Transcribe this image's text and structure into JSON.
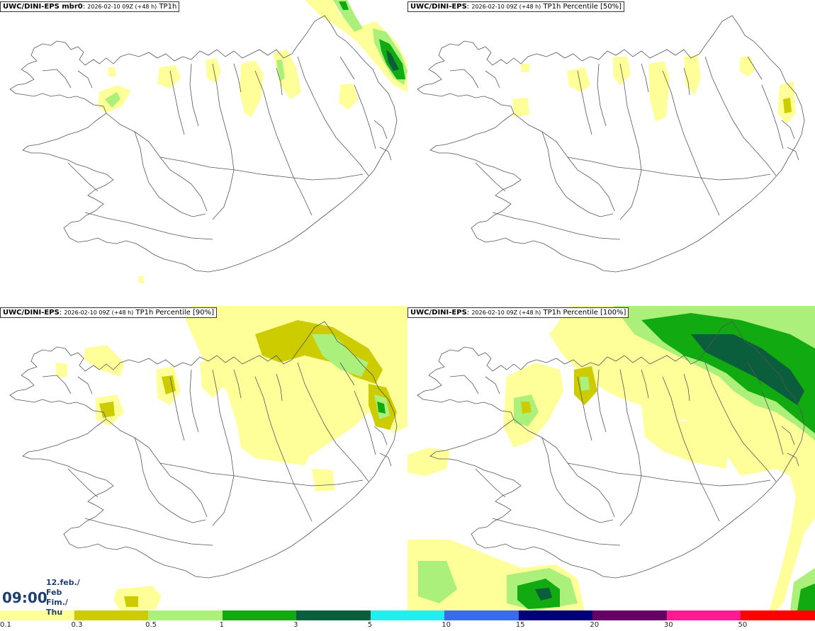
{
  "panels": [
    {
      "model": "UWC/DINI-EPS mbr0",
      "meta": "2026-02-10 09Z (+48 h)",
      "variable": "TP1h"
    },
    {
      "model": "UWC/DINI-EPS",
      "meta": "2026-02-10 09Z (+48 h)",
      "variable": "TP1h Percentile [50%]"
    },
    {
      "model": "UWC/DINI-EPS",
      "meta": "2026-02-10 09Z (+48 h)",
      "variable": "TP1h Percentile [90%]"
    },
    {
      "model": "UWC/DINI-EPS",
      "meta": "2026-02-10 09Z (+48 h)",
      "variable": "TP1h Percentile [100%]"
    }
  ],
  "valid_time": {
    "time": "09:00",
    "date_line": "12.feb./ Feb",
    "day_line": "Fim./ Thu"
  },
  "colorbar": {
    "colors": [
      "#ffff99",
      "#cccc00",
      "#aaf07a",
      "#11aa11",
      "#0b5e3b",
      "#22eeee",
      "#3a6aee",
      "#00007a",
      "#660066",
      "#ff1993",
      "#ff0000"
    ],
    "ticks": [
      "0.1",
      "0.3",
      "0.5",
      "1",
      "3",
      "5",
      "10",
      "15",
      "20",
      "30",
      "50"
    ]
  }
}
